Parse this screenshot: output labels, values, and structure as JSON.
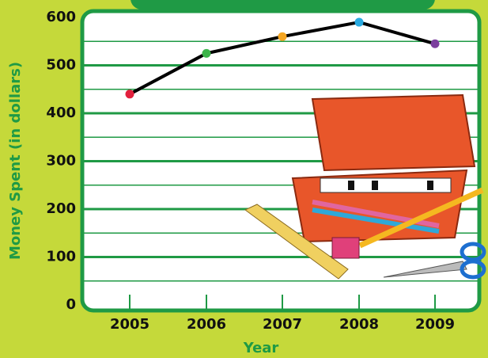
{
  "chart_data": {
    "type": "line",
    "x_label": "Year",
    "y_label": "Money Spent (in dollars)",
    "categories": [
      "2005",
      "2006",
      "2007",
      "2008",
      "2009"
    ],
    "series": [
      {
        "color": "#000000",
        "values": [
          440,
          525,
          560,
          590,
          545
        ],
        "point_colors": [
          "#e2203d",
          "#3cb44a",
          "#f5a623",
          "#29aae1",
          "#7b3f9e"
        ]
      }
    ],
    "ylim": [
      0,
      600
    ],
    "yticks": [
      0,
      100,
      200,
      300,
      400,
      500,
      600
    ],
    "minor_yticks": [
      50,
      150,
      250,
      350,
      450,
      550
    ],
    "grid": true,
    "grid_color": "#1f9a45"
  }
}
